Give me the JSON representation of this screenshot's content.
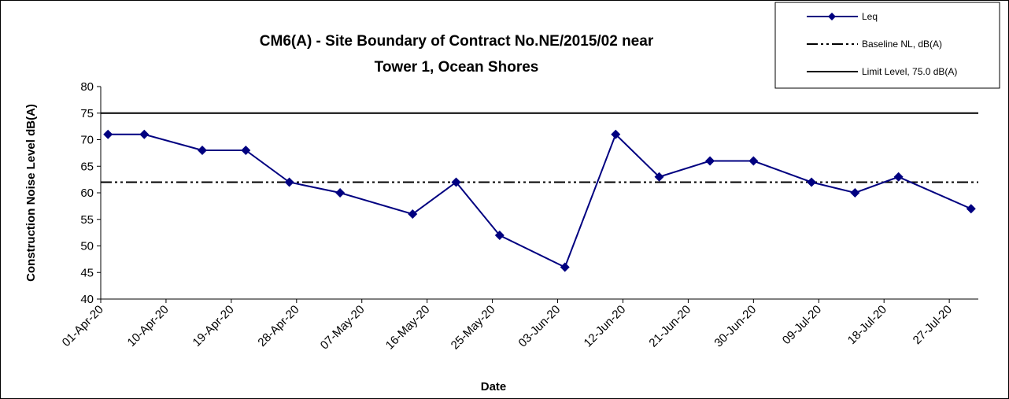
{
  "chart_data": {
    "type": "line",
    "title": [
      "CM6(A) - Site Boundary of Contract No.NE/2015/02 near",
      "Tower 1, Ocean Shores"
    ],
    "x_label": "Date",
    "y_label": "Construction Noise Level  dB(A)",
    "x": [
      "02-Apr-20",
      "07-Apr-20",
      "15-Apr-20",
      "21-Apr-20",
      "27-Apr-20",
      "04-May-20",
      "14-May-20",
      "20-May-20",
      "26-May-20",
      "04-Jun-20",
      "11-Jun-20",
      "17-Jun-20",
      "24-Jun-20",
      "30-Jun-20",
      "08-Jul-20",
      "14-Jul-20",
      "20-Jul-20",
      "30-Jul-20"
    ],
    "series": [
      {
        "name": "Leq",
        "color": "#000080",
        "marker": "diamond",
        "values": [
          71,
          71,
          68,
          68,
          62,
          60,
          56,
          62,
          52,
          46,
          71,
          63,
          66,
          66,
          62,
          60,
          63,
          57
        ]
      }
    ],
    "reference_lines": [
      {
        "name": "Baseline NL, dB(A)",
        "value": 62,
        "color": "#000000",
        "style": "dash-dot-dot"
      },
      {
        "name": "Limit Level, 75.0 dB(A)",
        "value": 75,
        "color": "#000000",
        "style": "solid"
      }
    ],
    "xlim": [
      "01-Apr-20",
      "31-Jul-20"
    ],
    "xticks": [
      "01-Apr-20",
      "10-Apr-20",
      "19-Apr-20",
      "28-Apr-20",
      "07-May-20",
      "16-May-20",
      "25-May-20",
      "03-Jun-20",
      "12-Jun-20",
      "21-Jun-20",
      "30-Jun-20",
      "09-Jul-20",
      "18-Jul-20",
      "27-Jul-20"
    ],
    "ylim": [
      40,
      80
    ],
    "yticks": [
      40,
      45,
      50,
      55,
      60,
      65,
      70,
      75,
      80
    ],
    "grid": false,
    "legend": "top-right"
  }
}
